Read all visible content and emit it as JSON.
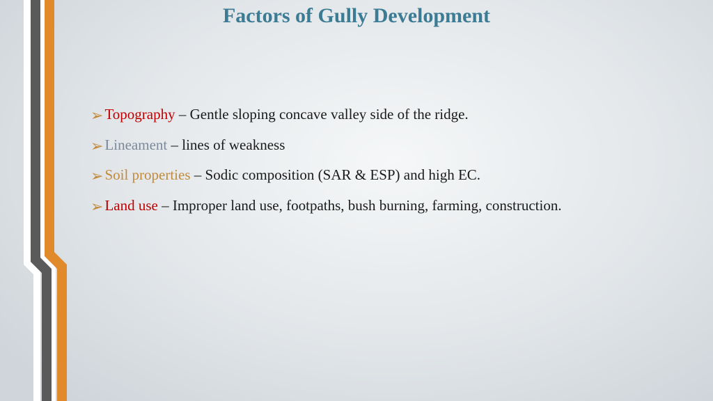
{
  "title": {
    "text": "Factors of Gully Development",
    "color": "#3b7b93",
    "fontsize": 30
  },
  "bullet": {
    "color": "#c28a3a",
    "glyph": "➢"
  },
  "body_fontsize": 21,
  "items": [
    {
      "term": "Topography",
      "term_color": "#c00000",
      "desc": " – Gentle sloping concave valley side of the ridge."
    },
    {
      "term": "Lineament",
      "term_color": "#7a8a99",
      "desc": " – lines of weakness"
    },
    {
      "term": "Soil properties",
      "term_color": "#c28a3a",
      "desc": " – Sodic composition (SAR & ESP) and high EC."
    },
    {
      "term": "Land use",
      "term_color": "#c00000",
      "desc": " – Improper land use, footpaths, bush burning, farming, construction."
    }
  ]
}
